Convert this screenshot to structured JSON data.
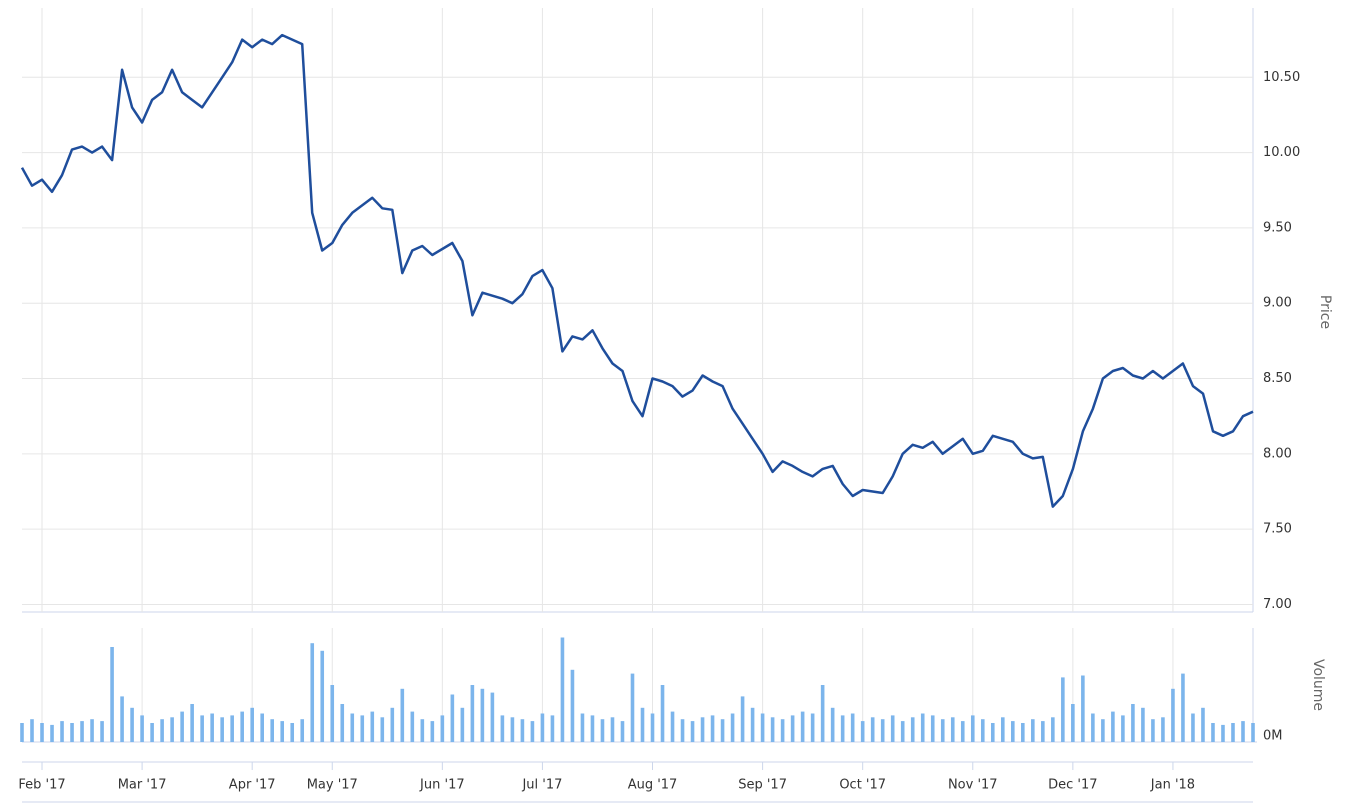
{
  "chart_data": {
    "type": "line",
    "categories": [
      null,
      null,
      "Feb '17",
      null,
      null,
      null,
      null,
      null,
      null,
      null,
      null,
      null,
      "Mar '17",
      null,
      null,
      null,
      null,
      null,
      null,
      null,
      null,
      null,
      null,
      "Apr '17",
      null,
      null,
      null,
      null,
      null,
      null,
      null,
      "May '17",
      null,
      null,
      null,
      null,
      null,
      null,
      null,
      null,
      null,
      null,
      "Jun '17",
      null,
      null,
      null,
      null,
      null,
      null,
      null,
      null,
      null,
      "Jul '17",
      null,
      null,
      null,
      null,
      null,
      null,
      null,
      null,
      null,
      null,
      "Aug '17",
      null,
      null,
      null,
      null,
      null,
      null,
      null,
      null,
      null,
      null,
      "Sep '17",
      null,
      null,
      null,
      null,
      null,
      null,
      null,
      null,
      null,
      "Oct '17",
      null,
      null,
      null,
      null,
      null,
      null,
      null,
      null,
      null,
      null,
      "Nov '17",
      null,
      null,
      null,
      null,
      null,
      null,
      null,
      null,
      null,
      "Dec '17",
      null,
      null,
      null,
      null,
      null,
      null,
      null,
      null,
      null,
      "Jan '18",
      null,
      null,
      null,
      null,
      null,
      null,
      null,
      null
    ],
    "series": [
      {
        "name": "Price",
        "type": "line",
        "color": "#1f4e9c",
        "values": [
          9.9,
          9.78,
          9.82,
          9.74,
          9.85,
          10.02,
          10.04,
          10.0,
          10.04,
          9.95,
          10.55,
          10.3,
          10.2,
          10.35,
          10.4,
          10.55,
          10.4,
          10.35,
          10.3,
          10.4,
          10.5,
          10.6,
          10.75,
          10.7,
          10.75,
          10.72,
          10.78,
          10.75,
          10.72,
          9.6,
          9.35,
          9.4,
          9.52,
          9.6,
          9.65,
          9.7,
          9.63,
          9.62,
          9.2,
          9.35,
          9.38,
          9.32,
          9.36,
          9.4,
          9.28,
          8.92,
          9.07,
          9.05,
          9.03,
          9.0,
          9.06,
          9.18,
          9.22,
          9.1,
          8.68,
          8.78,
          8.76,
          8.82,
          8.7,
          8.6,
          8.55,
          8.35,
          8.25,
          8.5,
          8.48,
          8.45,
          8.38,
          8.42,
          8.52,
          8.48,
          8.45,
          8.3,
          8.2,
          8.1,
          8.0,
          7.88,
          7.95,
          7.92,
          7.88,
          7.85,
          7.9,
          7.92,
          7.8,
          7.72,
          7.76,
          7.75,
          7.74,
          7.85,
          8.0,
          8.06,
          8.04,
          8.08,
          8.0,
          8.05,
          8.1,
          8.0,
          8.02,
          8.12,
          8.1,
          8.08,
          8.0,
          7.97,
          7.98,
          7.65,
          7.72,
          7.9,
          8.15,
          8.3,
          8.5,
          8.55,
          8.57,
          8.52,
          8.5,
          8.55,
          8.5,
          8.55,
          8.6,
          8.45,
          8.4,
          8.15,
          8.12,
          8.15,
          8.25,
          8.28
        ]
      },
      {
        "name": "Volume",
        "type": "bar",
        "axis": "y2",
        "color": "#7cb5ec",
        "values": [
          1.0,
          1.2,
          1.0,
          0.9,
          1.1,
          1.0,
          1.1,
          1.2,
          1.1,
          5.0,
          2.4,
          1.8,
          1.4,
          1.0,
          1.2,
          1.3,
          1.6,
          2.0,
          1.4,
          1.5,
          1.3,
          1.4,
          1.6,
          1.8,
          1.5,
          1.2,
          1.1,
          1.0,
          1.2,
          5.2,
          4.8,
          3.0,
          2.0,
          1.5,
          1.4,
          1.6,
          1.3,
          1.8,
          2.8,
          1.6,
          1.2,
          1.1,
          1.4,
          2.5,
          1.8,
          3.0,
          2.8,
          2.6,
          1.4,
          1.3,
          1.2,
          1.1,
          1.5,
          1.4,
          5.5,
          3.8,
          1.5,
          1.4,
          1.2,
          1.3,
          1.1,
          3.6,
          1.8,
          1.5,
          3.0,
          1.6,
          1.2,
          1.1,
          1.3,
          1.4,
          1.2,
          1.5,
          2.4,
          1.8,
          1.5,
          1.3,
          1.2,
          1.4,
          1.6,
          1.5,
          3.0,
          1.8,
          1.4,
          1.5,
          1.1,
          1.3,
          1.2,
          1.4,
          1.1,
          1.3,
          1.5,
          1.4,
          1.2,
          1.3,
          1.1,
          1.4,
          1.2,
          1.0,
          1.3,
          1.1,
          1.0,
          1.2,
          1.1,
          1.3,
          3.4,
          2.0,
          3.5,
          1.5,
          1.2,
          1.6,
          1.4,
          2.0,
          1.8,
          1.2,
          1.3,
          2.8,
          3.6,
          1.5,
          1.8,
          1.0,
          0.9,
          1.0,
          1.1,
          1.0
        ]
      }
    ],
    "ylim": [
      6.95,
      10.96
    ],
    "yticks": [
      {
        "value": 7,
        "label": "7.00"
      },
      {
        "value": 7.5,
        "label": "7.50"
      },
      {
        "value": 8,
        "label": "8.00"
      },
      {
        "value": 8.5,
        "label": "8.50"
      },
      {
        "value": 9,
        "label": "9.00"
      },
      {
        "value": 9.5,
        "label": "9.50"
      },
      {
        "value": 10,
        "label": "10.00"
      },
      {
        "value": 10.5,
        "label": "10.50"
      }
    ],
    "y2lim": [
      0,
      6
    ],
    "y2ticks": [
      {
        "value": 0,
        "label": "0M"
      }
    ],
    "grid": true
  }
}
